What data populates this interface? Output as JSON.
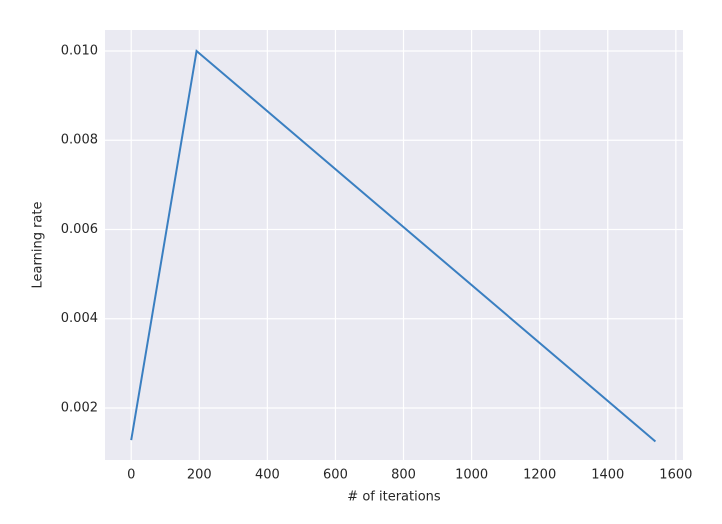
{
  "chart_data": {
    "type": "line",
    "x_label": "# of iterations",
    "y_label": "Learning rate",
    "x": [
      0,
      192,
      1540
    ],
    "values": [
      0.00128,
      0.01,
      0.00125
    ],
    "color": "#3a7fc1",
    "xlim": [
      -77,
      1621
    ],
    "xticks": [
      0,
      200,
      400,
      600,
      800,
      1000,
      1200,
      1400,
      1600
    ],
    "ylim": [
      0.000835,
      0.01047
    ],
    "yticks": [
      0.002,
      0.004,
      0.006,
      0.008,
      {
        "value": 0.01,
        "label": "0.010"
      }
    ],
    "grid": true
  }
}
